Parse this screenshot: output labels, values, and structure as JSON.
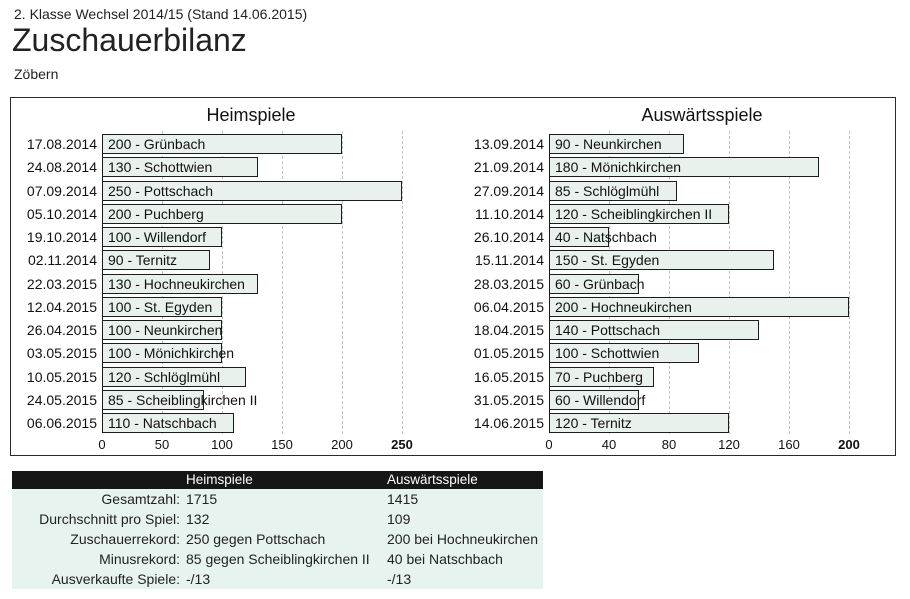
{
  "header": {
    "league_line": "2. Klasse Wechsel 2014/15 (Stand 14.06.2015)",
    "title": "Zuschauerbilanz",
    "team": "Zöbern"
  },
  "chart_data": [
    {
      "type": "bar",
      "orientation": "horizontal",
      "title": "Heimspiele",
      "categories": [
        "17.08.2014",
        "24.08.2014",
        "07.09.2014",
        "05.10.2014",
        "19.10.2014",
        "02.11.2014",
        "22.03.2015",
        "12.04.2015",
        "26.04.2015",
        "03.05.2015",
        "10.05.2015",
        "24.05.2015",
        "06.06.2015"
      ],
      "values": [
        200,
        130,
        250,
        200,
        100,
        90,
        130,
        100,
        100,
        100,
        120,
        85,
        110
      ],
      "bar_labels": [
        "200 - Grünbach",
        "130 - Schottwien",
        "250 - Pottschach",
        "200 - Puchberg",
        "100 - Willendorf",
        "90 - Ternitz",
        "130 - Hochneukirchen",
        "100 - St. Egyden",
        "100 - Neunkirchen",
        "100 - Mönichkirchen",
        "120 - Schlöglmühl",
        "85 - Scheiblingkirchen II",
        "110 - Natschbach"
      ],
      "x_ticks": [
        0,
        50,
        100,
        150,
        200,
        250
      ],
      "xlim": [
        0,
        250
      ],
      "grid": "dashed-vertical",
      "legend": "none"
    },
    {
      "type": "bar",
      "orientation": "horizontal",
      "title": "Auswärtsspiele",
      "categories": [
        "13.09.2014",
        "21.09.2014",
        "27.09.2014",
        "11.10.2014",
        "26.10.2014",
        "15.11.2014",
        "28.03.2015",
        "06.04.2015",
        "18.04.2015",
        "01.05.2015",
        "16.05.2015",
        "31.05.2015",
        "14.06.2015"
      ],
      "values": [
        90,
        180,
        85,
        120,
        40,
        150,
        60,
        200,
        140,
        100,
        70,
        60,
        120
      ],
      "bar_labels": [
        "90 - Neunkirchen",
        "180 - Mönichkirchen",
        "85 - Schlöglmühl",
        "120 - Scheiblingkirchen II",
        "40 - Natschbach",
        "150 - St. Egyden",
        "60 - Grünbach",
        "200 - Hochneukirchen",
        "140 - Pottschach",
        "100 - Schottwien",
        "70 - Puchberg",
        "60 - Willendorf",
        "120 - Ternitz"
      ],
      "x_ticks": [
        0,
        40,
        80,
        120,
        160,
        200
      ],
      "xlim": [
        0,
        200
      ],
      "grid": "dashed-vertical",
      "legend": "none"
    }
  ],
  "summary": {
    "columns": [
      "Heimspiele",
      "Auswärtsspiele"
    ],
    "rows": [
      {
        "label": "Gesamtzahl:",
        "home": "1715",
        "away": "1415"
      },
      {
        "label": "Durchschnitt pro Spiel:",
        "home": "132",
        "away": "109"
      },
      {
        "label": "Zuschauerrekord:",
        "home": "250 gegen Pottschach",
        "away": "200 bei Hochneukirchen"
      },
      {
        "label": "Minusrekord:",
        "home": "85 gegen Scheiblingkirchen II",
        "away": "40 bei Natschbach"
      },
      {
        "label": "Ausverkaufte Spiele:",
        "home": "-/13",
        "away": "-/13"
      }
    ]
  },
  "colors": {
    "bar_fill": "#e9f1ec",
    "bar_border": "#1c1c1c",
    "grid": "#c0c0c0",
    "box_border": "#2b2b2b",
    "table_header_bg": "#161616",
    "table_body_bg": "#e7f3ee"
  }
}
